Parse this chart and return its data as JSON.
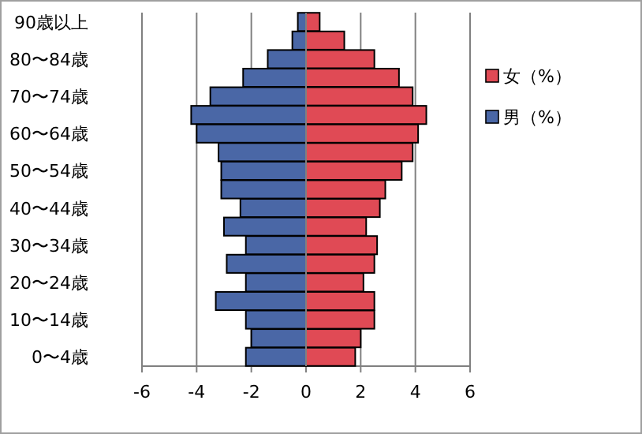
{
  "chart_data": {
    "type": "bar",
    "orientation": "horizontal",
    "stacked": true,
    "grid": "x",
    "legend": "right",
    "categories": [
      "90歳以上",
      null,
      "80〜84歳",
      null,
      "70〜74歳",
      null,
      "60〜64歳",
      null,
      "50〜54歳",
      null,
      "40〜44歳",
      null,
      "30〜34歳",
      null,
      "20〜24歳",
      null,
      "10〜14歳",
      null,
      "0〜4歳"
    ],
    "xlim": [
      -6,
      6
    ],
    "xticks": [
      -6,
      -4,
      -2,
      0,
      2,
      4,
      6
    ],
    "series": [
      {
        "name": "女（%）",
        "color": "#e04a55",
        "values": [
          0.5,
          1.4,
          2.5,
          3.4,
          3.9,
          4.4,
          4.1,
          3.9,
          3.5,
          2.9,
          2.7,
          2.2,
          2.6,
          2.5,
          2.1,
          2.5,
          2.5,
          2.0,
          1.8
        ]
      },
      {
        "name": "男（%）",
        "color": "#4a67a6",
        "values": [
          -0.3,
          -0.5,
          -1.4,
          -2.3,
          -3.5,
          -4.2,
          -4.0,
          -3.2,
          -3.1,
          -3.1,
          -2.4,
          -3.0,
          -2.2,
          -2.9,
          -2.2,
          -3.3,
          -2.2,
          -2.0,
          -2.2
        ]
      }
    ]
  }
}
